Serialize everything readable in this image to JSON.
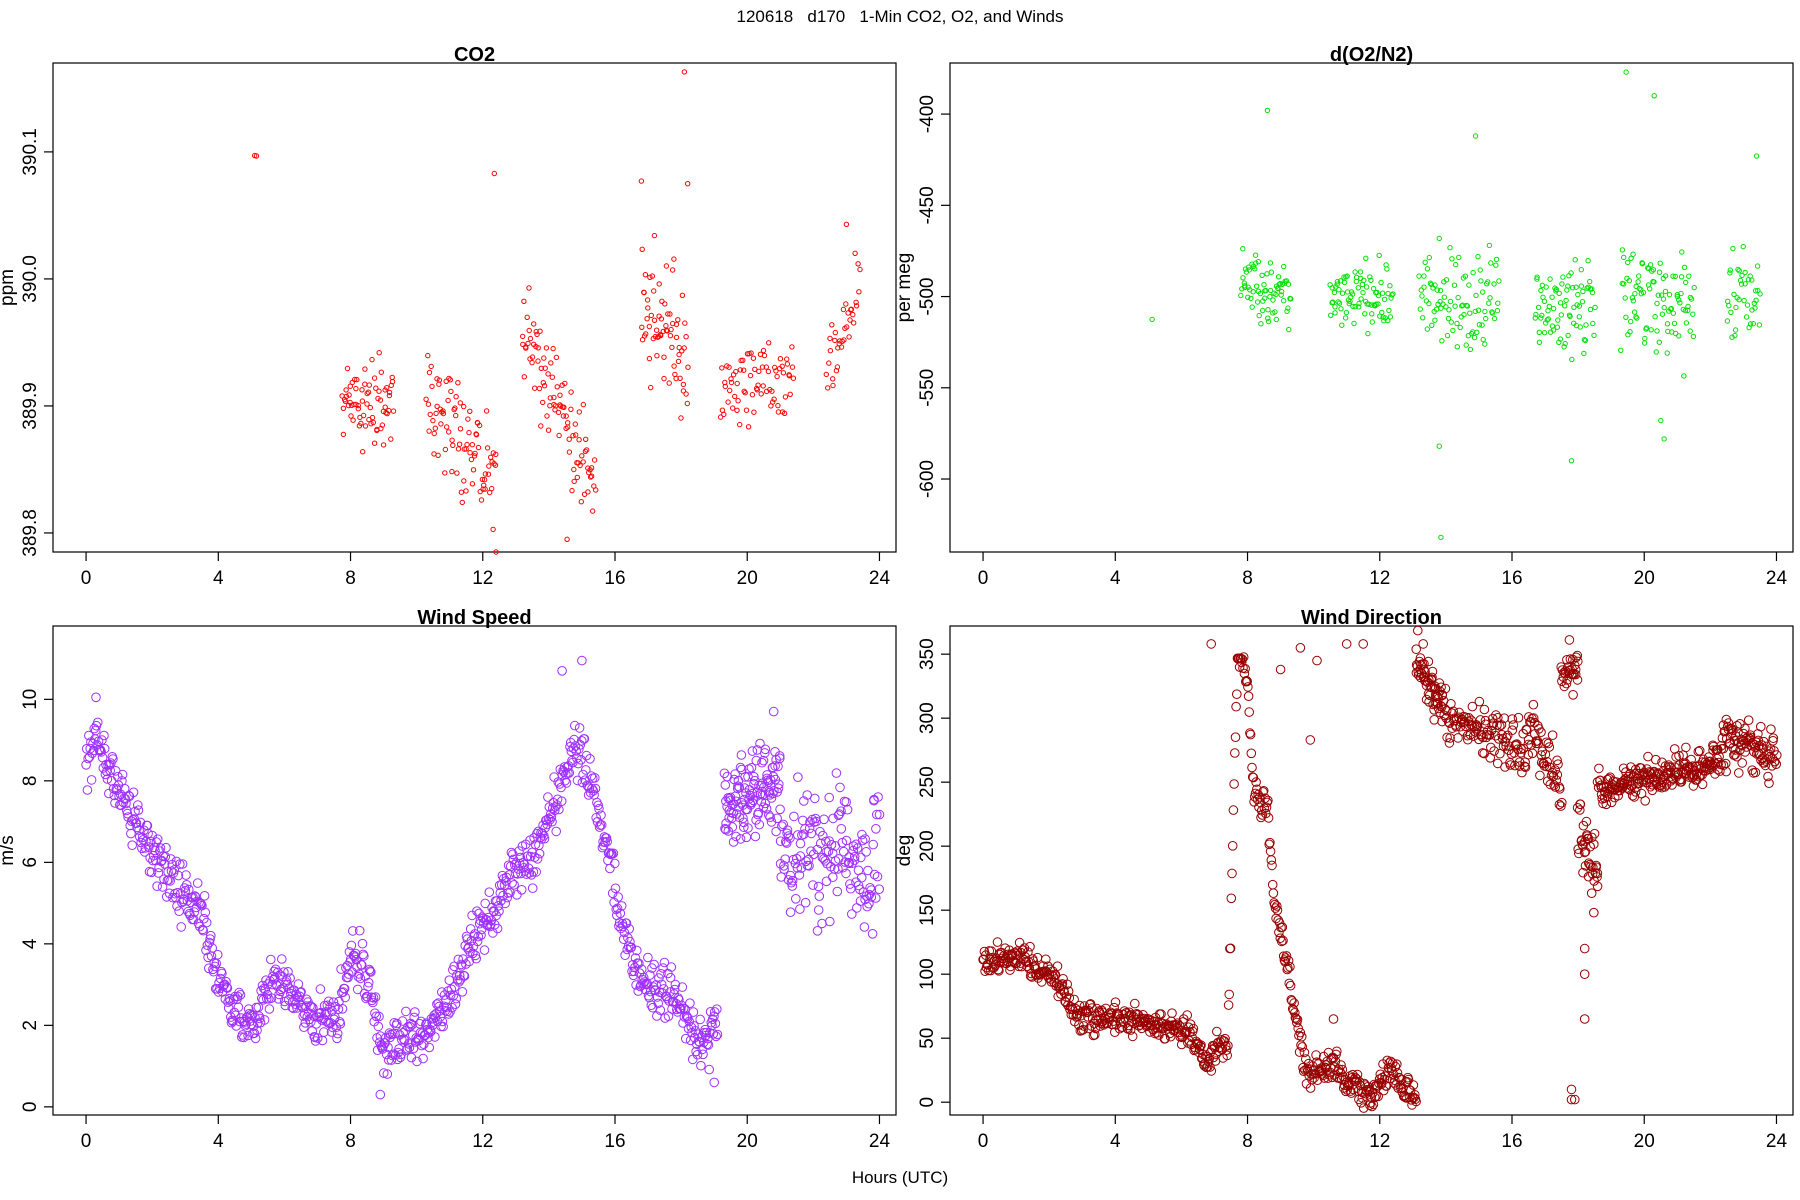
{
  "figure": {
    "title": "120618   d170   1-Min CO2, O2, and Winds",
    "xlabel": "Hours (UTC)"
  },
  "chart_data": [
    {
      "id": "co2",
      "type": "scatter",
      "title": "CO2",
      "xlabel": "",
      "ylabel": "ppm",
      "xlim": [
        -1,
        24.5
      ],
      "ylim": [
        389.785,
        390.17
      ],
      "xticks": [
        0,
        4,
        8,
        12,
        16,
        20,
        24
      ],
      "yticks": [
        389.8,
        389.9,
        390.0,
        390.1
      ],
      "ytick_labels": [
        "389.8",
        "389.9",
        "390.0",
        "390.1"
      ],
      "color": "#ff0000",
      "marker_radius": 2.2,
      "segments": [
        {
          "x0": 5.1,
          "x1": 5.15,
          "n": 2,
          "y": [
            390.097,
            390.097
          ],
          "noise": 0.001
        },
        {
          "x0": 7.75,
          "x1": 9.3,
          "n": 70,
          "y": [
            389.91,
            389.9
          ],
          "noise": 0.025
        },
        {
          "x0": 10.3,
          "x1": 12.4,
          "n": 90,
          "y": [
            389.91,
            389.84
          ],
          "noise": 0.035
        },
        {
          "x0": 13.2,
          "x1": 15.4,
          "n": 95,
          "y": [
            389.96,
            389.84
          ],
          "noise": 0.025
        },
        {
          "x0": 16.8,
          "x1": 18.2,
          "n": 70,
          "y": [
            389.98,
            389.93
          ],
          "noise": 0.035
        },
        {
          "x0": 19.2,
          "x1": 21.4,
          "n": 75,
          "y": [
            389.91,
            389.92
          ],
          "noise": 0.02
        },
        {
          "x0": 22.4,
          "x1": 23.4,
          "n": 35,
          "y": [
            389.93,
            389.99
          ],
          "noise": 0.02
        }
      ],
      "outliers": [
        [
          12.35,
          390.083
        ],
        [
          18.1,
          390.163
        ],
        [
          18.2,
          390.075
        ],
        [
          16.8,
          390.077
        ],
        [
          12.4,
          389.785
        ],
        [
          14.55,
          389.795
        ],
        [
          23.0,
          390.043
        ]
      ]
    },
    {
      "id": "o2",
      "type": "scatter",
      "title": "d(O2/N2)",
      "xlabel": "",
      "ylabel": "per meg",
      "xlim": [
        -1,
        24.5
      ],
      "ylim": [
        -640,
        -372
      ],
      "xticks": [
        0,
        4,
        8,
        12,
        16,
        20,
        24
      ],
      "yticks": [
        -600,
        -550,
        -500,
        -450,
        -400
      ],
      "ytick_labels": [
        "-600",
        "-550",
        "-500",
        "-450",
        "-400"
      ],
      "color": "#00e000",
      "marker_radius": 2.2,
      "segments": [
        {
          "x0": 5.1,
          "x1": 5.15,
          "n": 1,
          "y": [
            -512,
            -512
          ],
          "noise": 1
        },
        {
          "x0": 7.8,
          "x1": 9.3,
          "n": 70,
          "y": [
            -495,
            -497
          ],
          "noise": 12
        },
        {
          "x0": 10.5,
          "x1": 12.4,
          "n": 85,
          "y": [
            -500,
            -502
          ],
          "noise": 14
        },
        {
          "x0": 13.2,
          "x1": 15.6,
          "n": 95,
          "y": [
            -503,
            -505
          ],
          "noise": 18
        },
        {
          "x0": 16.7,
          "x1": 18.5,
          "n": 80,
          "y": [
            -505,
            -505
          ],
          "noise": 18
        },
        {
          "x0": 19.3,
          "x1": 21.5,
          "n": 95,
          "y": [
            -500,
            -505
          ],
          "noise": 22
        },
        {
          "x0": 22.5,
          "x1": 23.5,
          "n": 40,
          "y": [
            -498,
            -496
          ],
          "noise": 18
        }
      ],
      "outliers": [
        [
          8.6,
          -398
        ],
        [
          13.85,
          -632
        ],
        [
          13.8,
          -582
        ],
        [
          17.8,
          -590
        ],
        [
          19.45,
          -377
        ],
        [
          20.3,
          -390
        ],
        [
          14.9,
          -412
        ],
        [
          20.5,
          -568
        ],
        [
          20.6,
          -578
        ],
        [
          23.4,
          -423
        ]
      ]
    },
    {
      "id": "wind-speed",
      "type": "scatter",
      "title": "Wind Speed",
      "xlabel": "",
      "ylabel": "m/s",
      "xlim": [
        -1,
        24.5
      ],
      "ylim": [
        -0.2,
        11.8
      ],
      "xticks": [
        0,
        4,
        8,
        12,
        16,
        20,
        24
      ],
      "yticks": [
        0,
        2,
        4,
        6,
        8,
        10
      ],
      "ytick_labels": [
        "0",
        "2",
        "4",
        "6",
        "8",
        "10"
      ],
      "color": "#9f30ff",
      "marker_radius": 4.3,
      "curve": [
        [
          0,
          8.4
        ],
        [
          0.3,
          8.9
        ],
        [
          1,
          7.8
        ],
        [
          1.6,
          6.9
        ],
        [
          2.2,
          6.0
        ],
        [
          3.0,
          5.2
        ],
        [
          3.5,
          4.7
        ],
        [
          4.0,
          3.1
        ],
        [
          4.6,
          2.2
        ],
        [
          5.2,
          2.1
        ],
        [
          5.6,
          3.2
        ],
        [
          6.2,
          2.8
        ],
        [
          7.0,
          2.0
        ],
        [
          7.6,
          2.3
        ],
        [
          8.1,
          3.8
        ],
        [
          8.6,
          2.8
        ],
        [
          9.0,
          1.4
        ],
        [
          9.6,
          1.6
        ],
        [
          10.3,
          1.8
        ],
        [
          11.0,
          2.7
        ],
        [
          11.5,
          3.8
        ],
        [
          12.3,
          4.8
        ],
        [
          13.0,
          5.8
        ],
        [
          13.6,
          6.1
        ],
        [
          14.3,
          7.8
        ],
        [
          14.8,
          9.0
        ],
        [
          15.3,
          7.8
        ],
        [
          15.8,
          6.2
        ],
        [
          16.3,
          4.0
        ],
        [
          16.8,
          3.2
        ],
        [
          17.5,
          3.0
        ],
        [
          18.0,
          2.3
        ],
        [
          18.5,
          1.5
        ],
        [
          19.1,
          1.9
        ]
      ],
      "curve_noise": 0.45,
      "segments": [
        {
          "x0": 19.3,
          "x1": 21.0,
          "n": 120,
          "y": [
            7.4,
            7.8
          ],
          "noise": 0.7
        },
        {
          "x0": 21.0,
          "x1": 24.0,
          "n": 150,
          "y": [
            6.5,
            6.0
          ],
          "noise": 1.1
        }
      ],
      "outliers": [
        [
          0.3,
          10.05
        ],
        [
          14.4,
          10.7
        ],
        [
          15.0,
          10.95
        ],
        [
          8.9,
          0.3
        ],
        [
          19.0,
          0.6
        ],
        [
          20.8,
          9.7
        ]
      ]
    },
    {
      "id": "wind-direction",
      "type": "scatter",
      "title": "Wind Direction",
      "xlabel": "",
      "ylabel": "deg",
      "xlim": [
        -1,
        24.5
      ],
      "ylim": [
        -10,
        372
      ],
      "xticks": [
        0,
        4,
        8,
        12,
        16,
        20,
        24
      ],
      "yticks": [
        0,
        50,
        100,
        150,
        200,
        250,
        300,
        350
      ],
      "ytick_labels": [
        "0",
        "50",
        "100",
        "150",
        "200",
        "250",
        "300",
        "350"
      ],
      "color": "#990000",
      "marker_radius": 4.3,
      "curve": [
        [
          0,
          110
        ],
        [
          1.2,
          112
        ],
        [
          2.2,
          95
        ],
        [
          2.8,
          68
        ],
        [
          3.5,
          66
        ],
        [
          4.5,
          65
        ],
        [
          5.5,
          58
        ],
        [
          6.3,
          55
        ],
        [
          6.8,
          30
        ],
        [
          7.0,
          45
        ],
        [
          7.4,
          40
        ],
        [
          7.7,
          355
        ],
        [
          8.0,
          330
        ],
        [
          8.2,
          240
        ],
        [
          8.6,
          230
        ],
        [
          8.8,
          160
        ],
        [
          9.1,
          120
        ],
        [
          9.5,
          60
        ],
        [
          9.8,
          20
        ],
        [
          10.2,
          25
        ],
        [
          10.6,
          30
        ],
        [
          11.0,
          15
        ],
        [
          11.6,
          5
        ],
        [
          12.0,
          10
        ],
        [
          12.3,
          25
        ],
        [
          12.6,
          12
        ],
        [
          13.1,
          4
        ]
      ],
      "curve_noise": 8,
      "segments": [
        {
          "x0": 13.1,
          "x1": 13.9,
          "n": 60,
          "y": [
            350,
            310
          ],
          "noise": 12
        },
        {
          "x0": 13.9,
          "x1": 16.5,
          "n": 120,
          "y": [
            300,
            275
          ],
          "noise": 15
        },
        {
          "x0": 16.5,
          "x1": 17.5,
          "n": 50,
          "y": [
            295,
            245
          ],
          "noise": 15
        },
        {
          "x0": 17.5,
          "x1": 18.0,
          "n": 30,
          "y": [
            335,
            345
          ],
          "noise": 12
        },
        {
          "x0": 18.0,
          "x1": 18.6,
          "n": 40,
          "y": [
            215,
            175
          ],
          "noise": 20
        },
        {
          "x0": 18.6,
          "x1": 22.4,
          "n": 220,
          "y": [
            245,
            268
          ],
          "noise": 10
        },
        {
          "x0": 22.4,
          "x1": 24.0,
          "n": 90,
          "y": [
            285,
            270
          ],
          "noise": 14
        }
      ],
      "outliers": [
        [
          6.9,
          358
        ],
        [
          10.1,
          345
        ],
        [
          9.6,
          355
        ],
        [
          11.0,
          358
        ],
        [
          11.5,
          358
        ],
        [
          17.8,
          10
        ],
        [
          17.8,
          2
        ],
        [
          17.9,
          2
        ],
        [
          18.2,
          65
        ],
        [
          18.2,
          100
        ],
        [
          18.2,
          120
        ],
        [
          10.6,
          65
        ],
        [
          9.0,
          338
        ],
        [
          9.9,
          283
        ]
      ]
    }
  ]
}
